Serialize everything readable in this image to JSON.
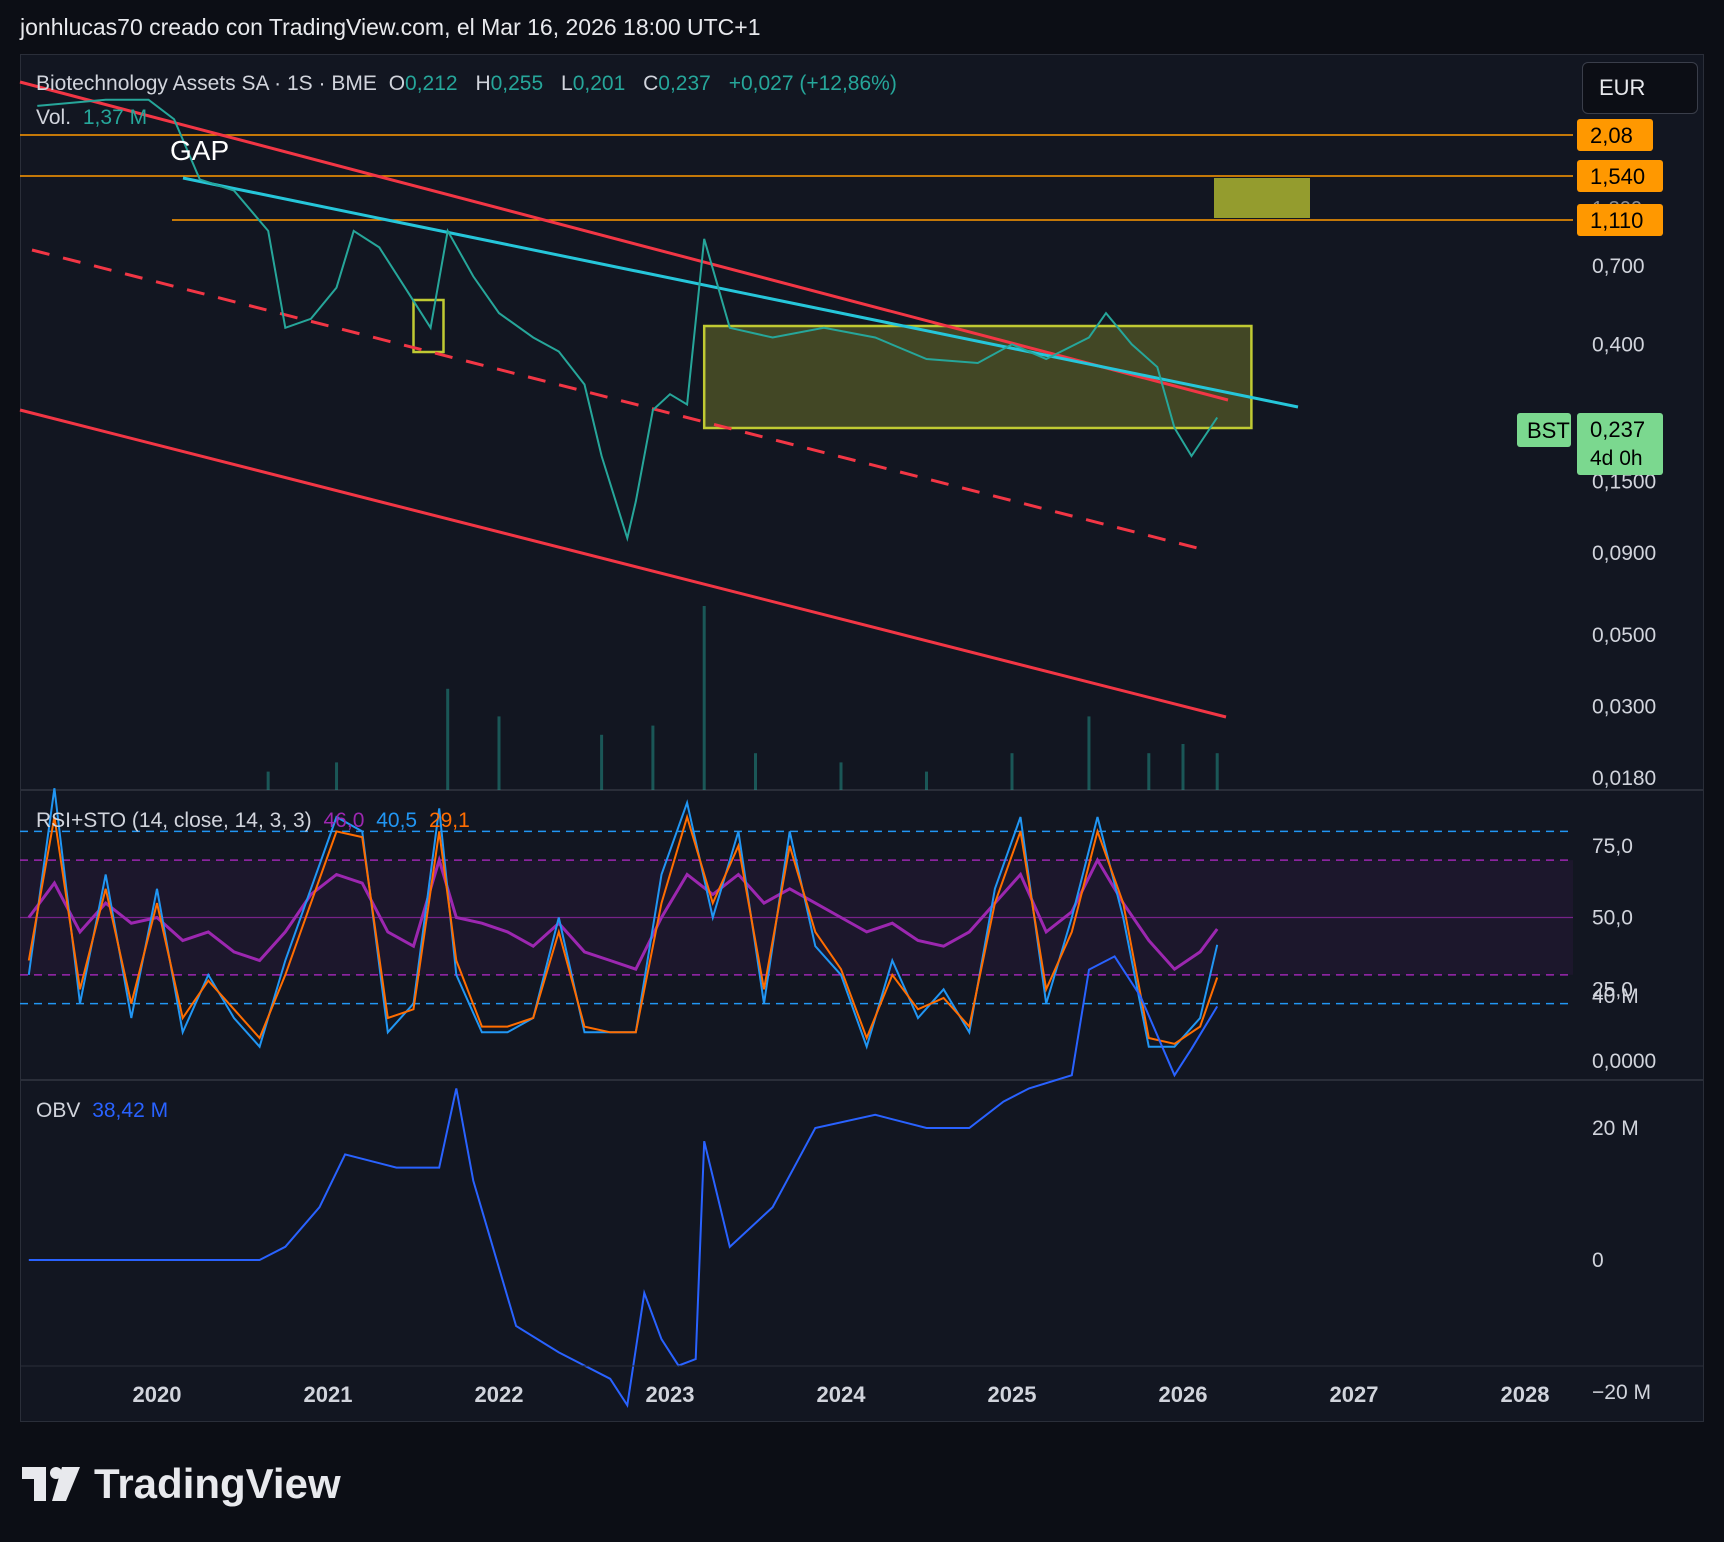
{
  "header": "jonhlucas70 creado con TradingView.com, el Mar 16, 2026 18:00 UTC+1",
  "currency": "EUR",
  "brand": "TradingView",
  "legend": {
    "symbol": "Biotechnology Assets SA · 1S · BME",
    "o_label": "O",
    "o": "0,212",
    "h_label": "H",
    "h": "0,255",
    "l_label": "L",
    "l": "0,201",
    "c_label": "C",
    "c": "0,237",
    "change": "+0,027 (+12,86%)",
    "vol_label": "Vol.",
    "vol": "1,37 M",
    "rsi_label": "RSI+STO (14, close, 14, 3, 3)",
    "rsi_value": "46,0",
    "sto_k": "40,5",
    "sto_d": "29,1",
    "obv_label": "OBV",
    "obv_value": "38,42 M"
  },
  "annotations": {
    "gap": "GAP",
    "hline_1": "2,08",
    "hline_2": "1,540",
    "hline_3": "1,110",
    "hline_hidden": "1,300",
    "bst_tag": "BST",
    "last_price": "0,237",
    "countdown": "4d 0h"
  },
  "colors": {
    "background": "#121621",
    "up": "#26a69a",
    "channel": "#f23645",
    "trendline": "#26c6da",
    "level": "#ff9800",
    "rsi": "#9c27b0",
    "sto_k": "#2196f3",
    "sto_d": "#ff6d00",
    "obv": "#2962ff",
    "range_box": "#c0ca33"
  },
  "chart_data": [
    {
      "type": "line",
      "pane": "price",
      "yscale": "log",
      "price_ticks": [
        "0,700",
        "0,400",
        "0,1500",
        "0,0900",
        "0,0500",
        "0,0300",
        "0,0180"
      ],
      "x_ticks": [
        "2020",
        "2021",
        "2022",
        "2023",
        "2024",
        "2025",
        "2026",
        "2027",
        "2028"
      ],
      "series": [
        {
          "x": [
            2019.3,
            2019.7,
            2019.95,
            2020.1,
            2020.25,
            2020.45,
            2020.65,
            2020.75,
            2020.9,
            2021.05,
            2021.15,
            2021.3,
            2021.45,
            2021.6,
            2021.7,
            2021.85,
            2022.0,
            2022.2,
            2022.35,
            2022.5,
            2022.6,
            2022.75,
            2022.8,
            2022.9,
            2023.0,
            2023.1,
            2023.2,
            2023.35,
            2023.6,
            2023.9,
            2024.2,
            2024.5,
            2024.8,
            2025.0,
            2025.2,
            2025.45,
            2025.55,
            2025.7,
            2025.85,
            2025.95,
            2026.05,
            2026.2
          ],
          "y": [
            2.2,
            2.3,
            2.3,
            2.0,
            1.3,
            1.2,
            0.9,
            0.45,
            0.48,
            0.6,
            0.9,
            0.8,
            0.6,
            0.45,
            0.9,
            0.65,
            0.5,
            0.42,
            0.38,
            0.3,
            0.18,
            0.1,
            0.13,
            0.25,
            0.28,
            0.26,
            0.85,
            0.45,
            0.42,
            0.45,
            0.42,
            0.36,
            0.35,
            0.4,
            0.36,
            0.42,
            0.5,
            0.4,
            0.34,
            0.22,
            0.18,
            0.237
          ]
        }
      ]
    },
    {
      "type": "bar",
      "pane": "volume",
      "x": [
        2020.65,
        2021.05,
        2021.7,
        2022.0,
        2022.6,
        2022.9,
        2023.2,
        2023.5,
        2024.0,
        2024.5,
        2025.0,
        2025.45,
        2025.8,
        2026.0,
        2026.2
      ],
      "values": [
        0.1,
        0.15,
        0.55,
        0.4,
        0.3,
        0.35,
        1.0,
        0.2,
        0.15,
        0.1,
        0.2,
        0.4,
        0.2,
        0.25,
        0.2
      ]
    },
    {
      "type": "line",
      "pane": "rsi_sto",
      "y_ticks": [
        "75,0",
        "50,0",
        "25,0",
        "0,0000"
      ],
      "ylim": [
        0,
        100
      ],
      "x": [
        2019.25,
        2019.4,
        2019.55,
        2019.7,
        2019.85,
        2020.0,
        2020.15,
        2020.3,
        2020.45,
        2020.6,
        2020.75,
        2020.9,
        2021.05,
        2021.2,
        2021.35,
        2021.5,
        2021.65,
        2021.75,
        2021.9,
        2022.05,
        2022.2,
        2022.35,
        2022.5,
        2022.65,
        2022.8,
        2022.95,
        2023.1,
        2023.25,
        2023.4,
        2023.55,
        2023.7,
        2023.85,
        2024.0,
        2024.15,
        2024.3,
        2024.45,
        2024.6,
        2024.75,
        2024.9,
        2025.05,
        2025.2,
        2025.35,
        2025.5,
        2025.65,
        2025.8,
        2025.95,
        2026.1,
        2026.2
      ],
      "series": [
        {
          "name": "RSI",
          "values": [
            50,
            62,
            45,
            55,
            48,
            50,
            42,
            45,
            38,
            35,
            45,
            58,
            65,
            62,
            45,
            40,
            70,
            50,
            48,
            45,
            40,
            48,
            38,
            35,
            32,
            50,
            65,
            58,
            65,
            55,
            60,
            55,
            50,
            45,
            48,
            42,
            40,
            45,
            55,
            65,
            45,
            52,
            70,
            55,
            42,
            32,
            38,
            46
          ]
        },
        {
          "name": "STO %K",
          "values": [
            30,
            95,
            20,
            65,
            15,
            60,
            10,
            30,
            15,
            5,
            35,
            60,
            85,
            80,
            10,
            20,
            88,
            30,
            10,
            10,
            15,
            50,
            10,
            10,
            10,
            65,
            90,
            50,
            80,
            20,
            80,
            40,
            30,
            5,
            35,
            15,
            25,
            10,
            60,
            85,
            20,
            50,
            85,
            50,
            5,
            5,
            15,
            40.5
          ]
        },
        {
          "name": "STO %D",
          "values": [
            35,
            85,
            25,
            60,
            20,
            55,
            15,
            28,
            18,
            8,
            30,
            55,
            80,
            78,
            15,
            18,
            80,
            35,
            12,
            12,
            15,
            45,
            12,
            10,
            10,
            55,
            85,
            55,
            75,
            25,
            75,
            45,
            32,
            8,
            30,
            18,
            22,
            12,
            55,
            80,
            25,
            45,
            80,
            55,
            8,
            6,
            12,
            29.1
          ]
        }
      ]
    },
    {
      "type": "line",
      "pane": "obv",
      "y_ticks": [
        "40 M",
        "20 M",
        "0",
        "−20 M"
      ],
      "x": [
        2019.25,
        2020.6,
        2020.75,
        2020.95,
        2021.1,
        2021.4,
        2021.65,
        2021.75,
        2021.85,
        2022.1,
        2022.35,
        2022.65,
        2022.75,
        2022.85,
        2022.95,
        2023.05,
        2023.15,
        2023.2,
        2023.35,
        2023.6,
        2023.85,
        2024.2,
        2024.5,
        2024.75,
        2024.95,
        2025.1,
        2025.35,
        2025.45,
        2025.6,
        2025.75,
        2025.95,
        2026.05,
        2026.2
      ],
      "values": [
        0,
        0,
        2,
        8,
        16,
        14,
        14,
        26,
        12,
        -10,
        -14,
        -18,
        -22,
        -5,
        -12,
        -16,
        -15,
        18,
        2,
        8,
        20,
        22,
        20,
        20,
        24,
        26,
        28,
        44,
        46,
        40,
        28,
        32,
        38.42
      ]
    }
  ]
}
